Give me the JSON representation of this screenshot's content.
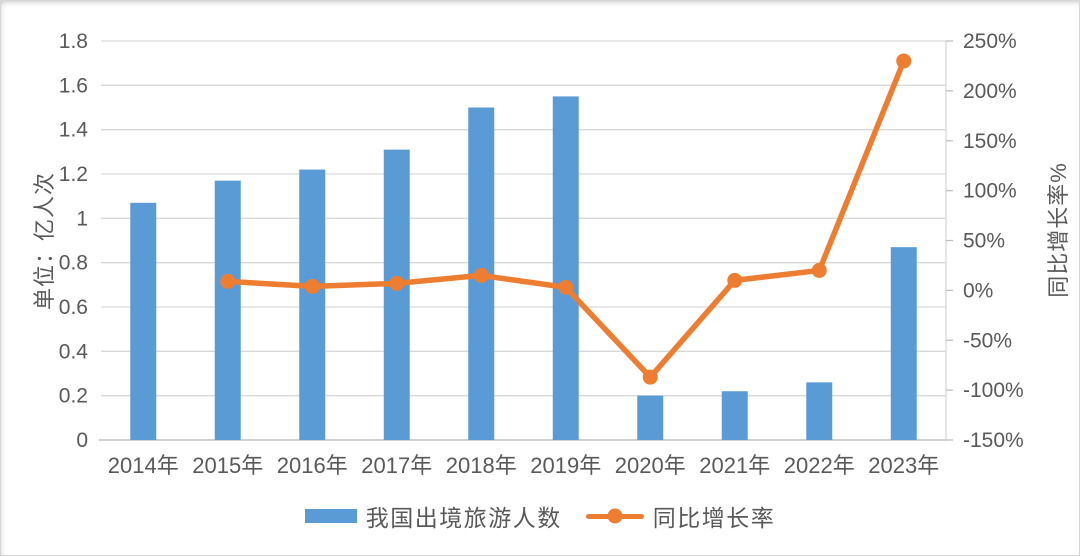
{
  "chart_data": {
    "type": "combo-bar-line",
    "categories": [
      "2014年",
      "2015年",
      "2016年",
      "2017年",
      "2018年",
      "2019年",
      "2020年",
      "2021年",
      "2022年",
      "2023年"
    ],
    "series": [
      {
        "name": "我国出境旅游人数",
        "type": "bar",
        "axis": "left",
        "unit": "亿人次",
        "values": [
          1.07,
          1.17,
          1.22,
          1.31,
          1.5,
          1.55,
          0.2,
          0.22,
          0.26,
          0.87
        ]
      },
      {
        "name": "同比增长率",
        "type": "line",
        "axis": "right",
        "unit": "%",
        "values": [
          null,
          9,
          4,
          7,
          15,
          3,
          -87,
          10,
          20,
          230
        ]
      }
    ],
    "left_axis": {
      "title": "单位：亿人次",
      "min": 0,
      "max": 1.8,
      "step": 0.2,
      "tick_labels": [
        "0",
        "0.2",
        "0.4",
        "0.6",
        "0.8",
        "1",
        "1.2",
        "1.4",
        "1.6",
        "1.8"
      ]
    },
    "right_axis": {
      "title": "同比增长率%",
      "min": -150,
      "max": 250,
      "step": 50,
      "tick_labels": [
        "-150%",
        "-100%",
        "-50%",
        "0%",
        "50%",
        "100%",
        "150%",
        "200%",
        "250%"
      ]
    },
    "grid": true,
    "legend_position": "bottom"
  },
  "colors": {
    "bar": "#5B9BD5",
    "line": "#ED7D31",
    "grid": "#D9D9D9",
    "axis_line": "#BFBFBF",
    "text": "#595959",
    "background": "#FFFFFF"
  }
}
